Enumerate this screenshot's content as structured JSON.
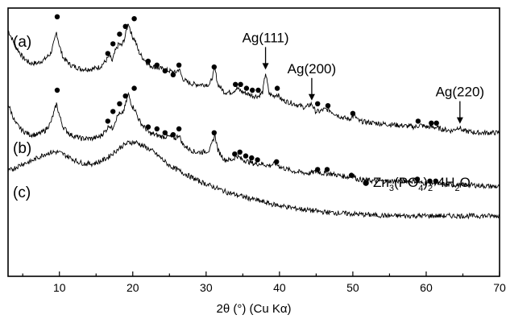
{
  "chart_data": {
    "type": "line",
    "xlabel": "2θ (°) (Cu Kα)",
    "ylabel": "",
    "xlim": [
      3,
      70
    ],
    "ylim": [
      0,
      100
    ],
    "x_ticks": [
      "10",
      "20",
      "30",
      "40",
      "50",
      "60",
      "70"
    ],
    "grid": false,
    "series": [
      {
        "name": "(a)",
        "label": "(a)",
        "points": [
          [
            3,
            96
          ],
          [
            4,
            88
          ],
          [
            5,
            82
          ],
          [
            6,
            79
          ],
          [
            7,
            79
          ],
          [
            8,
            81
          ],
          [
            8.8,
            84
          ],
          [
            9.3,
            90
          ],
          [
            9.6,
            95
          ],
          [
            10,
            88
          ],
          [
            10.5,
            82
          ],
          [
            11.5,
            78
          ],
          [
            13,
            76
          ],
          [
            14.5,
            76
          ],
          [
            15.5,
            77
          ],
          [
            16.3,
            80
          ],
          [
            16.8,
            83
          ],
          [
            17.2,
            80
          ],
          [
            17.6,
            85
          ],
          [
            18.1,
            89
          ],
          [
            18.5,
            88
          ],
          [
            18.9,
            92
          ],
          [
            19.4,
            100
          ],
          [
            19.9,
            93
          ],
          [
            20.3,
            91
          ],
          [
            20.8,
            85
          ],
          [
            21.3,
            82
          ],
          [
            21.8,
            80
          ],
          [
            22.2,
            78
          ],
          [
            23,
            77
          ],
          [
            24,
            76
          ],
          [
            25,
            75
          ],
          [
            25.8,
            74
          ],
          [
            26.3,
            76
          ],
          [
            26.8,
            71
          ],
          [
            27.5,
            69
          ],
          [
            28.5,
            68
          ],
          [
            29.5,
            68
          ],
          [
            30.5,
            68
          ],
          [
            31.2,
            76
          ],
          [
            31.6,
            68
          ],
          [
            32.5,
            64
          ],
          [
            33.5,
            64
          ],
          [
            34.2,
            66
          ],
          [
            35,
            64
          ],
          [
            35.8,
            63
          ],
          [
            36.5,
            62
          ],
          [
            37.2,
            62
          ],
          [
            37.7,
            64
          ],
          [
            38.1,
            74
          ],
          [
            38.6,
            63
          ],
          [
            39.2,
            62
          ],
          [
            39.7,
            63
          ],
          [
            40.3,
            60
          ],
          [
            42,
            58
          ],
          [
            43.5,
            56
          ],
          [
            44.4,
            58
          ],
          [
            44.9,
            54
          ],
          [
            45.5,
            54
          ],
          [
            46,
            55
          ],
          [
            46.7,
            55
          ],
          [
            47.5,
            53
          ],
          [
            48.5,
            51
          ],
          [
            49.5,
            50
          ],
          [
            50.2,
            52
          ],
          [
            50.8,
            49
          ],
          [
            53,
            48
          ],
          [
            56,
            47
          ],
          [
            58.5,
            46
          ],
          [
            59.2,
            47
          ],
          [
            60,
            46
          ],
          [
            61,
            46
          ],
          [
            62,
            45
          ],
          [
            63.5,
            44
          ],
          [
            64.5,
            46
          ],
          [
            65,
            44
          ],
          [
            67,
            43
          ],
          [
            70,
            43
          ]
        ]
      },
      {
        "name": "(b)",
        "label": "(b)",
        "points": [
          [
            3,
            58
          ],
          [
            4,
            48
          ],
          [
            5,
            44
          ],
          [
            6,
            42
          ],
          [
            7,
            42
          ],
          [
            8,
            44
          ],
          [
            8.8,
            48
          ],
          [
            9.3,
            54
          ],
          [
            9.6,
            58
          ],
          [
            10,
            52
          ],
          [
            10.5,
            46
          ],
          [
            11.5,
            42
          ],
          [
            13,
            40
          ],
          [
            14.5,
            40
          ],
          [
            15.5,
            41
          ],
          [
            16.3,
            44
          ],
          [
            16.8,
            47
          ],
          [
            17.2,
            45
          ],
          [
            17.6,
            49
          ],
          [
            18.1,
            53
          ],
          [
            18.5,
            52
          ],
          [
            18.9,
            56
          ],
          [
            19.4,
            63
          ],
          [
            19.9,
            57
          ],
          [
            20.3,
            55
          ],
          [
            20.8,
            50
          ],
          [
            21.3,
            47
          ],
          [
            21.8,
            45
          ],
          [
            22.2,
            43
          ],
          [
            23,
            42
          ],
          [
            24,
            41
          ],
          [
            25,
            41
          ],
          [
            25.8,
            40
          ],
          [
            26.3,
            42
          ],
          [
            26.8,
            37
          ],
          [
            27.5,
            35
          ],
          [
            28.5,
            33
          ],
          [
            29.5,
            33
          ],
          [
            30.5,
            34
          ],
          [
            31.2,
            42
          ],
          [
            31.6,
            34
          ],
          [
            32.5,
            29
          ],
          [
            33.5,
            29
          ],
          [
            34.2,
            31
          ],
          [
            35,
            29
          ],
          [
            35.8,
            28
          ],
          [
            36.5,
            27
          ],
          [
            37.5,
            27
          ],
          [
            38.5,
            26
          ],
          [
            39.5,
            27
          ],
          [
            40.3,
            25
          ],
          [
            42,
            23
          ],
          [
            44,
            22
          ],
          [
            45.2,
            23
          ],
          [
            45.8,
            22
          ],
          [
            46.7,
            22
          ],
          [
            48,
            21
          ],
          [
            49.5,
            20
          ],
          [
            50,
            21
          ],
          [
            50.6,
            19
          ],
          [
            53,
            18
          ],
          [
            56,
            18
          ],
          [
            58.6,
            18
          ],
          [
            59.3,
            17
          ],
          [
            60.5,
            17
          ],
          [
            61.2,
            17
          ],
          [
            63,
            16
          ],
          [
            66,
            16
          ],
          [
            70,
            15
          ]
        ]
      },
      {
        "name": "(c)",
        "label": "(c)",
        "points": [
          [
            3,
            23
          ],
          [
            4,
            25
          ],
          [
            5,
            27
          ],
          [
            6,
            28
          ],
          [
            7,
            30
          ],
          [
            8,
            32
          ],
          [
            9,
            33
          ],
          [
            9.8,
            33
          ],
          [
            10.5,
            32
          ],
          [
            11.5,
            30
          ],
          [
            12.5,
            28
          ],
          [
            13.5,
            27
          ],
          [
            14.5,
            27
          ],
          [
            15.5,
            28
          ],
          [
            16.5,
            30
          ],
          [
            17.5,
            33
          ],
          [
            18.5,
            36
          ],
          [
            19.5,
            38
          ],
          [
            20.5,
            38
          ],
          [
            21.5,
            36
          ],
          [
            22.5,
            34
          ],
          [
            23.5,
            31
          ],
          [
            25,
            26
          ],
          [
            27,
            22
          ],
          [
            29,
            18
          ],
          [
            31,
            15
          ],
          [
            33,
            12
          ],
          [
            35,
            10
          ],
          [
            37,
            8
          ],
          [
            39,
            6
          ],
          [
            42,
            4
          ],
          [
            46,
            2
          ],
          [
            50,
            1
          ],
          [
            55,
            0
          ],
          [
            60,
            0
          ],
          [
            65,
            0
          ],
          [
            70,
            0
          ]
        ]
      }
    ],
    "markers": {
      "symbol": "●",
      "label": "Zn3(PO4)2·4H2O",
      "a": [
        [
          9.7,
          103
        ],
        [
          16.6,
          84
        ],
        [
          17.3,
          89
        ],
        [
          18.2,
          94
        ],
        [
          19.0,
          98
        ],
        [
          20.2,
          102
        ],
        [
          22.1,
          80
        ],
        [
          23.3,
          78
        ],
        [
          24.4,
          75
        ],
        [
          25.5,
          73
        ],
        [
          26.3,
          78
        ],
        [
          31.1,
          77
        ],
        [
          34.0,
          68
        ],
        [
          34.7,
          68
        ],
        [
          35.5,
          66
        ],
        [
          36.3,
          65
        ],
        [
          37.1,
          65
        ],
        [
          39.7,
          66
        ],
        [
          45.2,
          58
        ],
        [
          46.6,
          57
        ],
        [
          50.0,
          53
        ],
        [
          58.9,
          49
        ],
        [
          60.7,
          48
        ],
        [
          61.4,
          48
        ]
      ],
      "b": [
        [
          9.7,
          65
        ],
        [
          16.6,
          49
        ],
        [
          17.3,
          54
        ],
        [
          18.2,
          58
        ],
        [
          19.0,
          62
        ],
        [
          20.2,
          66
        ],
        [
          22.1,
          46
        ],
        [
          23.3,
          45
        ],
        [
          24.4,
          43
        ],
        [
          25.5,
          42
        ],
        [
          26.3,
          45
        ],
        [
          31.1,
          43
        ],
        [
          33.9,
          32
        ],
        [
          34.6,
          33
        ],
        [
          35.4,
          31
        ],
        [
          36.2,
          30
        ],
        [
          37.0,
          29
        ],
        [
          39.6,
          28
        ],
        [
          45.2,
          24
        ],
        [
          46.5,
          24
        ],
        [
          49.8,
          21
        ],
        [
          58.8,
          19
        ],
        [
          60.5,
          18
        ],
        [
          61.3,
          18
        ]
      ]
    },
    "annotations": [
      {
        "text": "Ag(111)",
        "x": 38.1,
        "y": 74
      },
      {
        "text": "Ag(200)",
        "x": 44.4,
        "y": 58
      },
      {
        "text": "Ag(220)",
        "x": 64.6,
        "y": 46
      }
    ]
  },
  "legend": {
    "symbol": "●",
    "text_main": "Zn",
    "sub1": "3",
    "text_mid": "(PO",
    "sub2": "4",
    "text_mid2": ")",
    "sub3": "2",
    "text_end": "·4H",
    "sub4": "2",
    "text_tail": "O"
  }
}
